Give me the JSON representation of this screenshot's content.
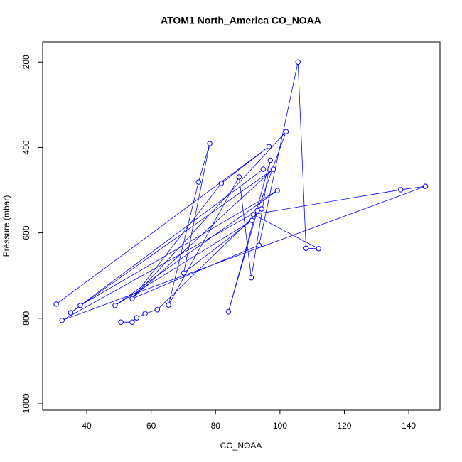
{
  "chart_data": {
    "type": "line",
    "title": "ATOM1 North_America CO_NOAA",
    "x_label": "CO_NOAA",
    "y_label": "Pressure (mbar)",
    "x": [
      30.5,
      96.6,
      81.8,
      54.1,
      97.9,
      35.0,
      94.8,
      38.0,
      99.2,
      48.8,
      91.3,
      70.1,
      78.2,
      74.7,
      65.4,
      87.3,
      91.1,
      97.0,
      84.0,
      93.0,
      101.9,
      54.1,
      93.5,
      105.6,
      108.1,
      112.0,
      91.7,
      137.5,
      145.2,
      32.3,
      94.3,
      61.9,
      58.1,
      55.5,
      54.1,
      50.6
    ],
    "series": [
      {
        "name": "CO_NOAA",
        "color": "#0000ff",
        "values": [
          767,
          398,
          484,
          754,
          451,
          787,
          451,
          770,
          501,
          770,
          571,
          694,
          391,
          481,
          769,
          469,
          705,
          430,
          785,
          548,
          363,
          754,
          629,
          200,
          636,
          637,
          557,
          499,
          491,
          805,
          544,
          780,
          789,
          799,
          809,
          809
        ]
      }
    ],
    "xlim": [
      26.3,
      149.7
    ],
    "ylim": [
      1015,
      153
    ],
    "xticks": [
      40,
      60,
      80,
      100,
      120,
      140
    ],
    "yticks": [
      200,
      400,
      600,
      800,
      1000
    ],
    "markers": true
  }
}
